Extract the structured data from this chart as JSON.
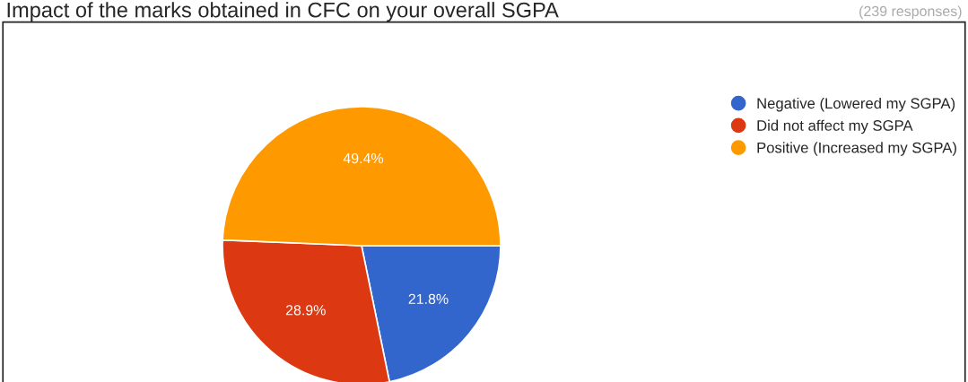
{
  "chart_data": {
    "type": "pie",
    "title": "Impact of the marks obtained in CFC on your overall SGPA",
    "subtitle": "(239 responses)",
    "categories": [
      "Negative (Lowered my SGPA)",
      "Did not affect my SGPA",
      "Positive (Increased my SGPA)"
    ],
    "values": [
      21.8,
      28.9,
      49.4
    ],
    "colors": [
      "#3366cc",
      "#dc3912",
      "#ff9900"
    ],
    "value_labels": [
      "21.8%",
      "28.9%",
      "49.4%"
    ],
    "legend": "top right"
  }
}
